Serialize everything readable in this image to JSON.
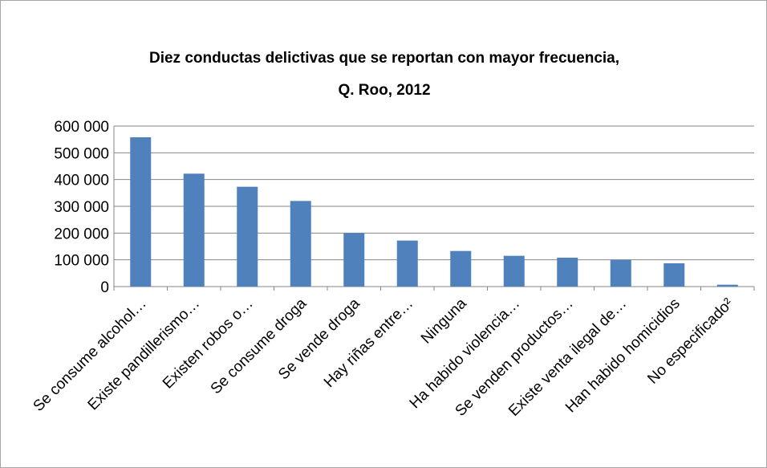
{
  "chart_data": {
    "type": "bar",
    "title_line1": "Diez conductas delictivas que se reportan con mayor frecuencia,",
    "title_line2": "Q. Roo, 2012",
    "categories": [
      "Se consume alcohol…",
      "Existe pandillerismo…",
      "Existen robos o…",
      "Se consume droga",
      "Se vende droga",
      "Hay riñas entre…",
      "Ninguna",
      "Ha habido violencia…",
      "Se venden productos…",
      "Existe venta ilegal de…",
      "Han habido homicidios",
      "No especificado²"
    ],
    "values": [
      558000,
      422000,
      373000,
      320000,
      200000,
      172000,
      133000,
      115000,
      108000,
      100000,
      87000,
      7000
    ],
    "yticks": [
      "0",
      "100 000",
      "200 000",
      "300 000",
      "400 000",
      "500 000",
      "600 000"
    ],
    "ylim": [
      0,
      600000
    ],
    "bar_color": "#4f81bd",
    "grid": true
  }
}
